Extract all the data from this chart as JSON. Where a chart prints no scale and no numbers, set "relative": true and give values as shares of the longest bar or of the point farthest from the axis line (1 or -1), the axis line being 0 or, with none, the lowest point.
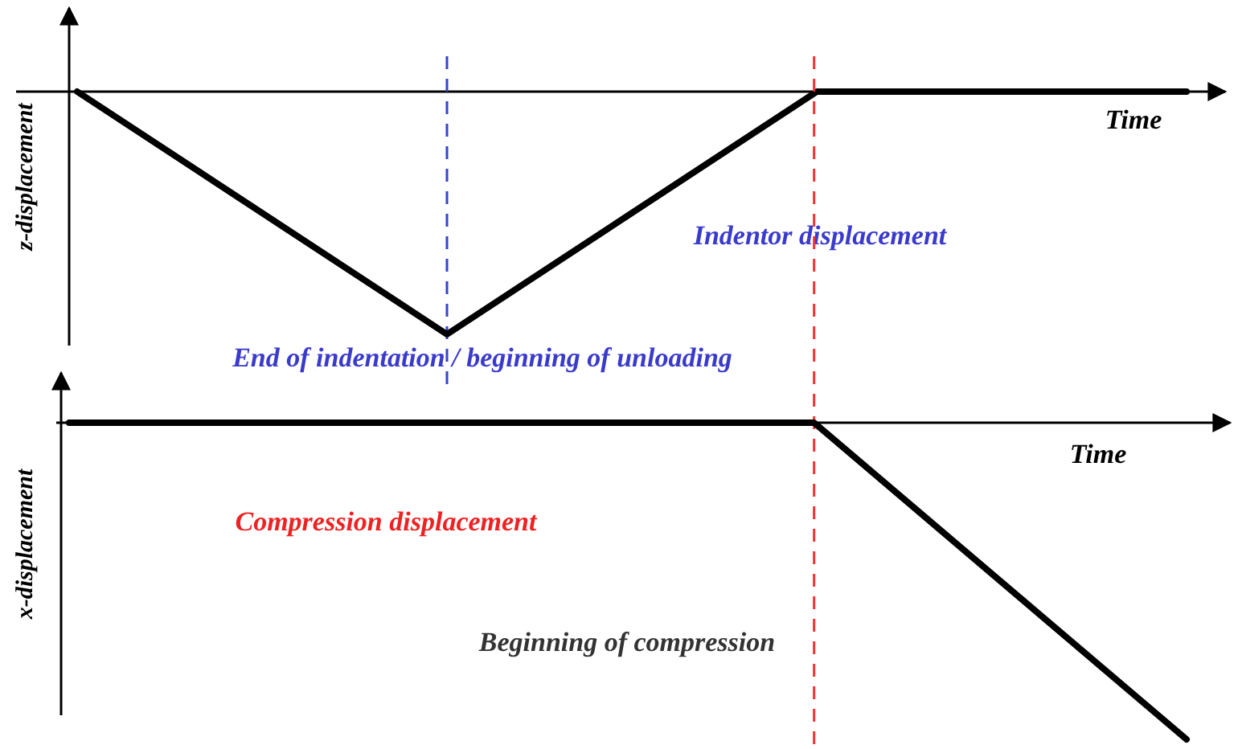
{
  "chart_data": [
    {
      "type": "line",
      "relative": true,
      "xlabel": "Time",
      "ylabel": "z-displacement",
      "categories": [
        null,
        null,
        null,
        null
      ],
      "tick_labels": false,
      "series": [
        {
          "color": "#000000",
          "values": [
            0,
            -1,
            0,
            0
          ]
        }
      ],
      "annotations": [
        "Indentor displacement",
        "End of indentation / beginning of unloading"
      ]
    },
    {
      "type": "line",
      "relative": true,
      "xlabel": "Time",
      "ylabel": "x-displacement",
      "categories": [
        null,
        null,
        null,
        null
      ],
      "tick_labels": false,
      "series": [
        {
          "color": "#000000",
          "values": [
            0,
            0,
            0,
            -1
          ]
        }
      ],
      "annotations": [
        "Compression displacement",
        "Beginning of compression"
      ]
    }
  ]
}
